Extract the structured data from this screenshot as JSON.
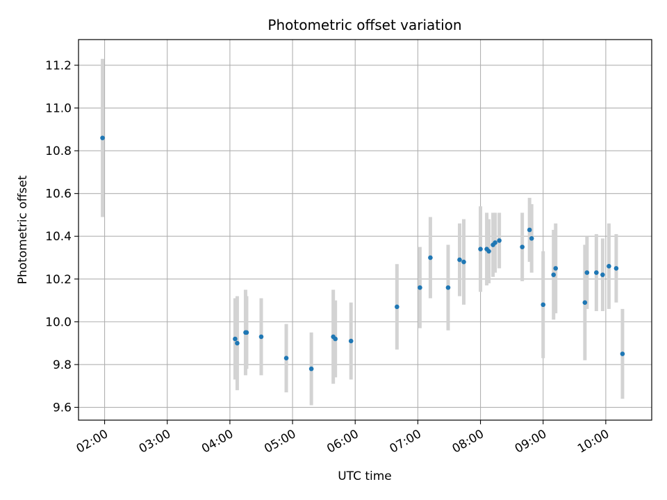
{
  "chart_data": {
    "type": "scatter",
    "title": "Photometric offset variation",
    "xlabel": "UTC time",
    "ylabel": "Photometric offset",
    "x_ticks": [
      "02:00",
      "03:00",
      "04:00",
      "05:00",
      "06:00",
      "07:00",
      "08:00",
      "09:00",
      "10:00"
    ],
    "y_ticks": [
      "9.6",
      "9.8",
      "10.0",
      "10.2",
      "10.4",
      "10.6",
      "10.8",
      "11.0",
      "11.2"
    ],
    "xlim": [
      "01:35",
      "10:44"
    ],
    "ylim": [
      9.54,
      11.32
    ],
    "grid": true,
    "colors": {
      "point": "#1f77b4",
      "errorbar": "#d3d3d3",
      "grid": "#b0b0b0"
    },
    "points": [
      {
        "x": "01:58",
        "y": 10.86,
        "yerr": 0.37
      },
      {
        "x": "04:05",
        "y": 9.92,
        "yerr": 0.19
      },
      {
        "x": "04:07",
        "y": 9.9,
        "yerr": 0.22
      },
      {
        "x": "04:15",
        "y": 9.95,
        "yerr": 0.2
      },
      {
        "x": "04:16",
        "y": 9.95,
        "yerr": 0.17
      },
      {
        "x": "04:30",
        "y": 9.93,
        "yerr": 0.18
      },
      {
        "x": "04:54",
        "y": 9.83,
        "yerr": 0.16
      },
      {
        "x": "05:18",
        "y": 9.78,
        "yerr": 0.17
      },
      {
        "x": "05:39",
        "y": 9.93,
        "yerr": 0.22
      },
      {
        "x": "05:41",
        "y": 9.92,
        "yerr": 0.18
      },
      {
        "x": "05:56",
        "y": 9.91,
        "yerr": 0.18
      },
      {
        "x": "06:40",
        "y": 10.07,
        "yerr": 0.2
      },
      {
        "x": "07:02",
        "y": 10.16,
        "yerr": 0.19
      },
      {
        "x": "07:12",
        "y": 10.3,
        "yerr": 0.19
      },
      {
        "x": "07:29",
        "y": 10.16,
        "yerr": 0.2
      },
      {
        "x": "07:40",
        "y": 10.29,
        "yerr": 0.17
      },
      {
        "x": "07:44",
        "y": 10.28,
        "yerr": 0.2
      },
      {
        "x": "08:00",
        "y": 10.34,
        "yerr": 0.2
      },
      {
        "x": "08:06",
        "y": 10.34,
        "yerr": 0.17
      },
      {
        "x": "08:08",
        "y": 10.33,
        "yerr": 0.15
      },
      {
        "x": "08:12",
        "y": 10.36,
        "yerr": 0.15
      },
      {
        "x": "08:14",
        "y": 10.37,
        "yerr": 0.14
      },
      {
        "x": "08:18",
        "y": 10.38,
        "yerr": 0.13
      },
      {
        "x": "08:40",
        "y": 10.35,
        "yerr": 0.16
      },
      {
        "x": "08:47",
        "y": 10.43,
        "yerr": 0.15
      },
      {
        "x": "08:49",
        "y": 10.39,
        "yerr": 0.16
      },
      {
        "x": "09:00",
        "y": 10.08,
        "yerr": 0.25
      },
      {
        "x": "09:10",
        "y": 10.22,
        "yerr": 0.21
      },
      {
        "x": "09:12",
        "y": 10.25,
        "yerr": 0.21
      },
      {
        "x": "09:40",
        "y": 10.09,
        "yerr": 0.27
      },
      {
        "x": "09:42",
        "y": 10.23,
        "yerr": 0.17
      },
      {
        "x": "09:51",
        "y": 10.23,
        "yerr": 0.18
      },
      {
        "x": "09:57",
        "y": 10.22,
        "yerr": 0.17
      },
      {
        "x": "10:03",
        "y": 10.26,
        "yerr": 0.2
      },
      {
        "x": "10:10",
        "y": 10.25,
        "yerr": 0.16
      },
      {
        "x": "10:16",
        "y": 9.85,
        "yerr": 0.21
      }
    ]
  }
}
